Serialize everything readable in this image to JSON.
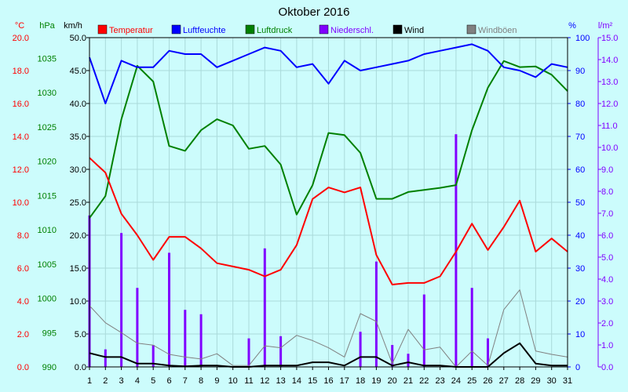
{
  "chart_data": {
    "type": "line",
    "title": "Oktober 2016",
    "xlabel": "",
    "ylabel": "",
    "grid": true,
    "legend_position": "top",
    "x": [
      1,
      2,
      3,
      4,
      5,
      6,
      7,
      8,
      9,
      10,
      11,
      12,
      13,
      14,
      15,
      16,
      17,
      18,
      19,
      20,
      21,
      22,
      23,
      24,
      25,
      26,
      27,
      28,
      29,
      30,
      31
    ],
    "y_axes": [
      {
        "id": "celsius",
        "unit": "°C",
        "side": "left",
        "color": "#ff0000",
        "range": [
          0,
          20
        ],
        "ticks": [
          "0.0",
          "2.0",
          "4.0",
          "6.0",
          "8.0",
          "10.0",
          "12.0",
          "14.0",
          "16.0",
          "18.0",
          "20.0"
        ]
      },
      {
        "id": "pressure",
        "unit": "hPa",
        "side": "left",
        "color": "#008000",
        "range": [
          990,
          1038
        ],
        "ticks": [
          "990",
          "995",
          "1000",
          "1005",
          "1010",
          "1015",
          "1020",
          "1025",
          "1030",
          "1035"
        ]
      },
      {
        "id": "wind",
        "unit": "km/h",
        "side": "left",
        "color": "#000000",
        "range": [
          0,
          50
        ],
        "ticks": [
          "0.0",
          "5.0",
          "10.0",
          "15.0",
          "20.0",
          "25.0",
          "30.0",
          "35.0",
          "40.0",
          "45.0",
          "50.0"
        ]
      },
      {
        "id": "humidity",
        "unit": "%",
        "side": "right",
        "color": "#0000ff",
        "range": [
          0,
          100
        ],
        "ticks": [
          "0",
          "10",
          "20",
          "30",
          "40",
          "50",
          "60",
          "70",
          "80",
          "90",
          "100"
        ]
      },
      {
        "id": "precip",
        "unit": "l/m²",
        "side": "right",
        "color": "#8000ff",
        "range": [
          0,
          15
        ],
        "ticks": [
          "0.0",
          "1.0",
          "2.0",
          "3.0",
          "4.0",
          "5.0",
          "6.0",
          "7.0",
          "8.0",
          "9.0",
          "10.0",
          "11.0",
          "12.0",
          "13.0",
          "14.0",
          "15.0"
        ]
      }
    ],
    "series": [
      {
        "name": "Temperatur",
        "type": "line",
        "axis": "celsius",
        "color": "#ff0000",
        "values": [
          12.7,
          11.8,
          9.3,
          8.0,
          6.5,
          7.9,
          7.9,
          7.2,
          6.3,
          6.1,
          5.9,
          5.5,
          5.9,
          7.4,
          10.2,
          10.9,
          10.6,
          10.9,
          6.8,
          5.0,
          5.1,
          5.1,
          5.5,
          7.0,
          8.7,
          7.1,
          8.5,
          10.1,
          7.0,
          7.8,
          7.0
        ]
      },
      {
        "name": "Luftfeuchte",
        "type": "line",
        "axis": "humidity",
        "color": "#0000ff",
        "values": [
          94,
          80,
          93,
          91,
          91,
          96,
          95,
          95,
          91,
          93,
          95,
          97,
          96,
          91,
          92,
          86,
          93,
          90,
          91,
          92,
          93,
          95,
          96,
          97,
          98,
          96,
          91,
          90,
          88,
          92,
          91
        ]
      },
      {
        "name": "Luftdruck",
        "type": "line",
        "axis": "pressure",
        "color": "#008000",
        "values": [
          1011.7,
          1014.9,
          1026.1,
          1033.9,
          1031.6,
          1022.2,
          1021.5,
          1024.5,
          1026.1,
          1025.2,
          1021.8,
          1022.2,
          1019.5,
          1012.2,
          1016.5,
          1024.1,
          1023.8,
          1021.2,
          1014.5,
          1014.5,
          1015.5,
          1015.8,
          1016.1,
          1016.5,
          1024.5,
          1030.7,
          1034.6,
          1033.7,
          1033.8,
          1032.6,
          1030.2
        ]
      },
      {
        "name": "Niederschl.",
        "type": "bar",
        "axis": "precip",
        "color": "#8000ff",
        "values": [
          6.9,
          0.8,
          6.1,
          3.6,
          1.0,
          5.2,
          2.6,
          2.4,
          0,
          0,
          1.3,
          5.4,
          1.4,
          0,
          0,
          0,
          0,
          1.6,
          4.8,
          1.0,
          0.6,
          3.3,
          0,
          10.6,
          3.6,
          1.3,
          0,
          0,
          0,
          0,
          0
        ]
      },
      {
        "name": "Wind",
        "type": "line",
        "axis": "wind",
        "color": "#000000",
        "values": [
          2.1,
          1.5,
          1.5,
          0.5,
          0.5,
          0.2,
          0.1,
          0.2,
          0.2,
          0,
          0,
          0.2,
          0.2,
          0.2,
          0.7,
          0.7,
          0.2,
          1.5,
          1.5,
          0.2,
          0.7,
          0.2,
          0.2,
          0,
          0,
          0,
          2.1,
          3.6,
          0.5,
          0.2,
          0.2
        ]
      },
      {
        "name": "Windböen",
        "type": "line",
        "axis": "wind",
        "color": "#808080",
        "values": [
          9.3,
          6.7,
          5.2,
          3.6,
          3.3,
          1.9,
          1.5,
          1.2,
          2.0,
          0.2,
          0.2,
          3.2,
          2.9,
          4.8,
          4.0,
          2.9,
          1.5,
          8.1,
          6.9,
          0.5,
          5.7,
          2.6,
          3.0,
          0,
          2.4,
          0.2,
          8.7,
          11.7,
          2.4,
          1.9,
          1.5
        ]
      }
    ]
  }
}
